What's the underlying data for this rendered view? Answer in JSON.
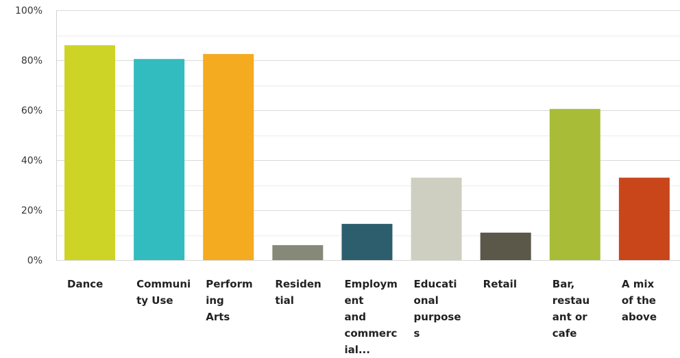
{
  "chart_data": {
    "type": "bar",
    "categories": [
      [
        "Dance"
      ],
      [
        "Communi",
        "ty Use"
      ],
      [
        "Perform",
        "ing",
        "Arts"
      ],
      [
        "Residen",
        "tial"
      ],
      [
        "Employm",
        "ent",
        "and",
        "commerc",
        "ial..."
      ],
      [
        "Educati",
        "onal",
        "purpose",
        "s"
      ],
      [
        "Retail"
      ],
      [
        "Bar,",
        "restau",
        "ant or",
        "cafe"
      ],
      [
        "A mix",
        "of the",
        "above"
      ]
    ],
    "values": [
      86,
      80.5,
      82.5,
      6,
      14.5,
      33,
      11,
      60.5,
      33
    ],
    "colors": [
      "#cdd425",
      "#33bcbf",
      "#f5ab1f",
      "#878978",
      "#2c5e6e",
      "#cfcfc1",
      "#5b5849",
      "#a9bc38",
      "#c9461b"
    ],
    "ylim": [
      0,
      100
    ],
    "yticks": [
      "0%",
      "20%",
      "40%",
      "60%",
      "80%",
      "100%"
    ],
    "grid": true,
    "xlabel": "",
    "ylabel": "",
    "title": ""
  }
}
